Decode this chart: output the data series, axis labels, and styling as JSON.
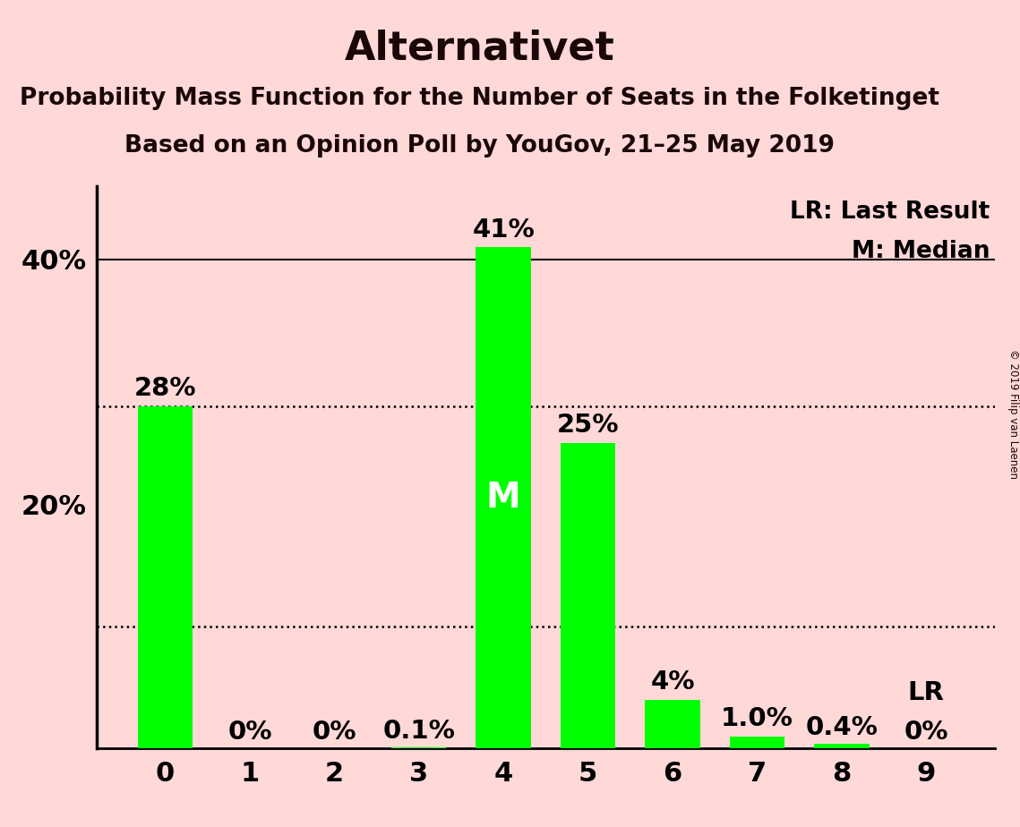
{
  "title": "Alternativet",
  "subtitle1": "Probability Mass Function for the Number of Seats in the Folketinget",
  "subtitle2": "Based on an Opinion Poll by YouGov, 21–25 May 2019",
  "categories": [
    0,
    1,
    2,
    3,
    4,
    5,
    6,
    7,
    8,
    9
  ],
  "values": [
    28,
    0,
    0,
    0.1,
    41,
    25,
    4,
    1.0,
    0.4,
    0
  ],
  "bar_color": "#00FF00",
  "background_color": "#FFD8D8",
  "yticks": [
    20,
    40
  ],
  "ylim": [
    0,
    46
  ],
  "median_bar_idx": 4,
  "lr_bar_idx": 9,
  "dotted_lines": [
    10,
    28
  ],
  "legend_text1": "LR: Last Result",
  "legend_text2": "M: Median",
  "copyright_text": "© 2019 Filip van Laenen",
  "bar_labels": [
    "28%",
    "0%",
    "0%",
    "0.1%",
    "41%",
    "25%",
    "4%",
    "1.0%",
    "0.4%",
    "0%"
  ],
  "title_fontsize": 32,
  "subtitle_fontsize": 19,
  "bar_label_fontsize": 21,
  "tick_fontsize": 22,
  "legend_fontsize": 19,
  "median_label": "M",
  "median_label_fontsize": 28,
  "lr_label": "LR",
  "bar_width": 0.65
}
